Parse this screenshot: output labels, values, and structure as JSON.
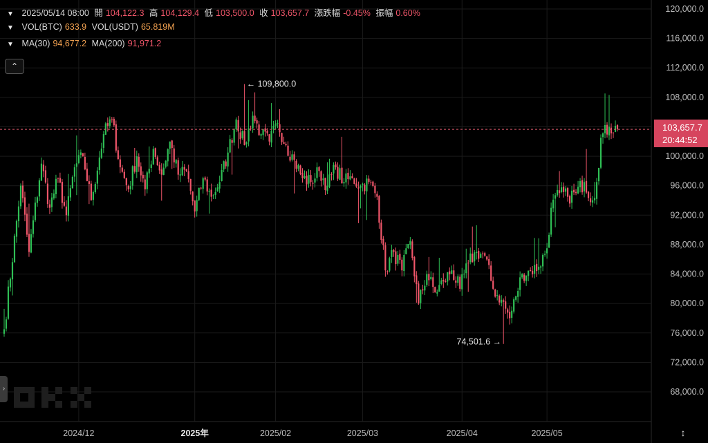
{
  "legend": {
    "datetime": "2025/05/14 08:00",
    "open_label": "開",
    "open": "104,122.3",
    "high_label": "高",
    "high": "104,129.4",
    "low_label": "低",
    "low": "103,500.0",
    "close_label": "收",
    "close": "103,657.7",
    "change_label": "漲跌幅",
    "change": "-0.45%",
    "amplitude_label": "振幅",
    "amplitude": "0.60%",
    "vol_btc_label": "VOL(BTC)",
    "vol_btc": "633.9",
    "vol_usdt_label": "VOL(USDT)",
    "vol_usdt": "65.819M",
    "ma30_label": "MA(30)",
    "ma30": "94,677.2",
    "ma200_label": "MA(200)",
    "ma200": "91,971.2"
  },
  "price_tag": {
    "price": "103,657.7",
    "countdown": "20:44:52"
  },
  "icons": {
    "collapse": "chevron-up-icon",
    "expand_side": "chevron-right-icon",
    "axis_toggle": "axis-scale-icon",
    "logo": "okx-logo"
  },
  "colors": {
    "up": "#2fbf55",
    "down": "#f0566a",
    "background": "#000000",
    "grid": "#1b1b1b",
    "price_line": "#e05a6e",
    "tag": "#d6455e"
  },
  "chart_data": {
    "type": "candlestick",
    "interval": "12h",
    "x_tick_labels": [
      "2024/12",
      "2025年",
      "2025/02",
      "2025/03",
      "2025/04",
      "2025/05"
    ],
    "y_tick_labels": [
      "120,000.0",
      "116,000.0",
      "112,000.0",
      "108,000.0",
      "104,000.0",
      "100,000.0",
      "96,000.0",
      "92,000.0",
      "88,000.0",
      "84,000.0",
      "80,000.0",
      "76,000.0",
      "72,000.0",
      "68,000.0"
    ],
    "ylim": [
      64000,
      121500
    ],
    "last_price": 103657.7,
    "annotations": [
      {
        "text": "← 109,800.0",
        "value": 109800,
        "index": 116
      },
      {
        "text": "74,501.6 →",
        "value": 74501.6,
        "index": 241
      }
    ],
    "anchors": [
      [
        0,
        76500
      ],
      [
        8,
        96000
      ],
      [
        12,
        87000
      ],
      [
        18,
        99000
      ],
      [
        22,
        93000
      ],
      [
        26,
        97000
      ],
      [
        30,
        92000
      ],
      [
        34,
        98500
      ],
      [
        38,
        100000
      ],
      [
        42,
        94000
      ],
      [
        48,
        103000
      ],
      [
        52,
        105000
      ],
      [
        56,
        98500
      ],
      [
        60,
        95500
      ],
      [
        64,
        100000
      ],
      [
        68,
        95500
      ],
      [
        72,
        101000
      ],
      [
        76,
        97500
      ],
      [
        80,
        102000
      ],
      [
        84,
        97500
      ],
      [
        88,
        98000
      ],
      [
        92,
        92500
      ],
      [
        96,
        97000
      ],
      [
        100,
        94500
      ],
      [
        104,
        96500
      ],
      [
        108,
        100500
      ],
      [
        112,
        105000
      ],
      [
        116,
        101500
      ],
      [
        120,
        105500
      ],
      [
        124,
        103000
      ],
      [
        128,
        102000
      ],
      [
        132,
        104500
      ],
      [
        136,
        101500
      ],
      [
        140,
        99500
      ],
      [
        144,
        97000
      ],
      [
        148,
        96500
      ],
      [
        152,
        98000
      ],
      [
        156,
        96000
      ],
      [
        160,
        98500
      ],
      [
        164,
        96500
      ],
      [
        168,
        97000
      ],
      [
        172,
        96000
      ],
      [
        176,
        96500
      ],
      [
        180,
        94500
      ],
      [
        184,
        84500
      ],
      [
        188,
        87000
      ],
      [
        192,
        84500
      ],
      [
        196,
        88500
      ],
      [
        200,
        80000
      ],
      [
        204,
        84000
      ],
      [
        208,
        81500
      ],
      [
        212,
        83000
      ],
      [
        216,
        84500
      ],
      [
        220,
        82000
      ],
      [
        224,
        85500
      ],
      [
        228,
        87000
      ],
      [
        232,
        86500
      ],
      [
        236,
        82000
      ],
      [
        240,
        80500
      ],
      [
        244,
        78000
      ],
      [
        247,
        81000
      ],
      [
        250,
        84000
      ],
      [
        254,
        84500
      ],
      [
        258,
        85000
      ],
      [
        262,
        87500
      ],
      [
        264,
        93000
      ],
      [
        268,
        95000
      ],
      [
        272,
        94500
      ],
      [
        276,
        95000
      ],
      [
        280,
        96500
      ],
      [
        284,
        94000
      ],
      [
        286,
        96500
      ],
      [
        288,
        102500
      ],
      [
        292,
        104000
      ],
      [
        296,
        103657.7
      ]
    ]
  }
}
